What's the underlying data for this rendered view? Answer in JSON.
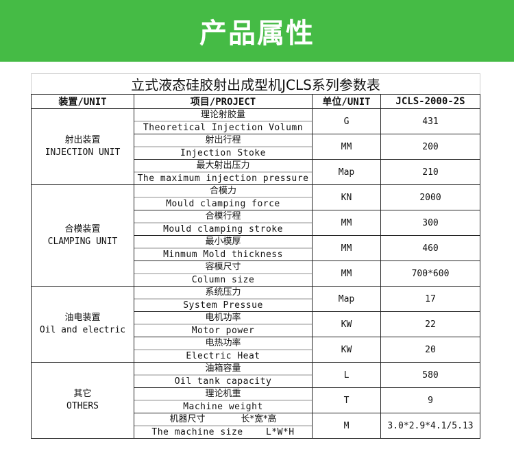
{
  "banner": {
    "title": "产品属性",
    "color": "#45bb45"
  },
  "table": {
    "title": "立式液态硅胶射出成型机JCLS系列参数表",
    "headers": [
      "装置/UNIT",
      "项目/PROJECT",
      "单位/UNIT",
      "JCLS-2000-2S"
    ],
    "groups": [
      {
        "cn": "射出装置",
        "en": "INJECTION UNIT",
        "rows": [
          {
            "cn": "理论射胶量",
            "en": "Theoretical Injection Volumn",
            "unit": "G",
            "value": "431"
          },
          {
            "cn": "射出行程",
            "en": "Injection Stoke",
            "unit": "MM",
            "value": "200"
          },
          {
            "cn": "最大射出压力",
            "en": "The maximum injection pressure",
            "unit": "Map",
            "value": "210"
          }
        ]
      },
      {
        "cn": "合模装置",
        "en": "CLAMPING UNIT",
        "rows": [
          {
            "cn": "合模力",
            "en": "Mould clamping force",
            "unit": "KN",
            "value": "2000"
          },
          {
            "cn": "合模行程",
            "en": "Mould clamping stroke",
            "unit": "MM",
            "value": "300"
          },
          {
            "cn": "最小模厚",
            "en": "Minmum Mold thickness",
            "unit": "MM",
            "value": "460"
          },
          {
            "cn": "容模尺寸",
            "en": "Column size",
            "unit": "MM",
            "value": "700*600"
          }
        ]
      },
      {
        "cn": "油电装置",
        "en": "Oil and electric",
        "rows": [
          {
            "cn": "系统压力",
            "en": "System Pressue",
            "unit": "Map",
            "value": "17"
          },
          {
            "cn": "电机功率",
            "en": "Motor power",
            "unit": "KW",
            "value": "22"
          },
          {
            "cn": "电热功率",
            "en": "Electric Heat",
            "unit": "KW",
            "value": "20"
          }
        ]
      },
      {
        "cn": "其它",
        "en": "OTHERS",
        "rows": [
          {
            "cn": "油箱容量",
            "en": "Oil tank capacity",
            "unit": "L",
            "value": "580"
          },
          {
            "cn": "理论机重",
            "en": "Machine weight",
            "unit": "T",
            "value": "9"
          },
          {
            "cn": "机器尺寸　　　　长*宽*高",
            "en": "The machine size    L*W*H",
            "unit": "M",
            "value": "3.0*2.9*4.1/5.13"
          }
        ]
      }
    ]
  }
}
